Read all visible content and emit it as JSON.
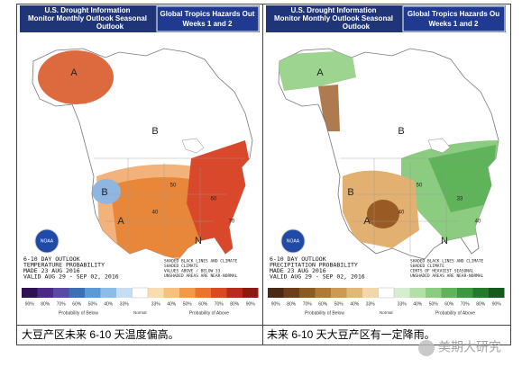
{
  "panels": [
    {
      "header": {
        "left_title": "U.S. Drought Information",
        "left_links": "Monitor   Monthly Outlook   Seasonal",
        "left_links2": "Outlook",
        "right_title": "Global Tropics Hazards Out",
        "right_sub": "Weeks 1 and 2"
      },
      "logo": "NOAA",
      "outlook_lines": [
        "6-10 DAY OUTLOOK",
        "TEMPERATURE PROBABILITY",
        "MADE  23 AUG 2016",
        "VALID  AUG 29 - SEP 02, 2016"
      ],
      "note_lines": [
        "SHADED BLACK LINES AND CLIMATE",
        "SHADED CLIMATE",
        "VALUES ABOVE / BELOW 33",
        "UNSHADED AREAS ARE NEAR-NORMAL"
      ],
      "map_labels": [
        "A",
        "B",
        "N",
        "40",
        "50",
        "60",
        "70",
        "A",
        "B"
      ],
      "legend": {
        "ticks": [
          "90%",
          "80%",
          "70%",
          "60%",
          "50%",
          "40%",
          "33%",
          "33%",
          "40%",
          "50%",
          "60%",
          "70%",
          "80%",
          "90%"
        ],
        "colors": [
          "#2d1152",
          "#4a2a86",
          "#5a4aa8",
          "#3b6fb6",
          "#5a9ad6",
          "#8cbde8",
          "#c5def4",
          "#f9dcb0",
          "#f7c07c",
          "#f09a4a",
          "#e8742e",
          "#d94a22",
          "#b82a1c",
          "#8a1a12"
        ],
        "below": "Probability of Below",
        "normal": "Normal",
        "above": "Probability of Above"
      },
      "regions": {
        "fill_a": "#e8873a",
        "fill_b": "#d9482a",
        "fill_c": "#f2b27a",
        "fill_d": "#8fb6e0",
        "alaska": "#d95a2a"
      }
    },
    {
      "header": {
        "left_title": "U.S. Drought Information",
        "left_links": "Monitor   Monthly Outlook   Seasonal",
        "left_links2": "Outlook",
        "right_title": "Global Tropics Hazards Ou",
        "right_sub": "Weeks 1 and 2"
      },
      "logo": "NOAA",
      "outlook_lines": [
        "6-10 DAY OUTLOOK",
        "PRECIPITATION PROBABILITY",
        "MADE  23 AUG 2016",
        "VALID  AUG 29 - SEP 02, 2016"
      ],
      "note_lines": [
        "SHADED BLACK LINES AND CLIMATE",
        "SHADED CLIMATE",
        "CENTS OF HEAVIEST SEASONAL",
        "UNSHADED AREAS ARE NEAR-NORMAL"
      ],
      "map_labels": [
        "A",
        "B",
        "N",
        "40",
        "50",
        "33",
        "40",
        "A",
        "B"
      ],
      "legend": {
        "ticks": [
          "90%",
          "80%",
          "70%",
          "60%",
          "50%",
          "40%",
          "33%",
          "33%",
          "40%",
          "50%",
          "60%",
          "70%",
          "80%",
          "90%"
        ],
        "colors": [
          "#4a2a12",
          "#6e3e18",
          "#8e5a24",
          "#b07a36",
          "#cc9a52",
          "#e2b878",
          "#f2d8a8",
          "#d6eecf",
          "#b4dfa8",
          "#8ccc80",
          "#5fb45a",
          "#3c983e",
          "#237a2a",
          "#135a1c"
        ],
        "below": "Probability of Below",
        "normal": "Normal",
        "above": "Probability of Above"
      },
      "regions": {
        "fill_a": "#8ccc80",
        "fill_b": "#5fb45a",
        "fill_c": "#e2b070",
        "fill_d": "#9a5a24",
        "alaska": "#9cd490"
      }
    }
  ],
  "captions": [
    "大豆产区未来 6-10 天温度偏高。",
    "未来 6-10 天大豆产区有一定降雨。"
  ],
  "watermark": "美期大研究"
}
